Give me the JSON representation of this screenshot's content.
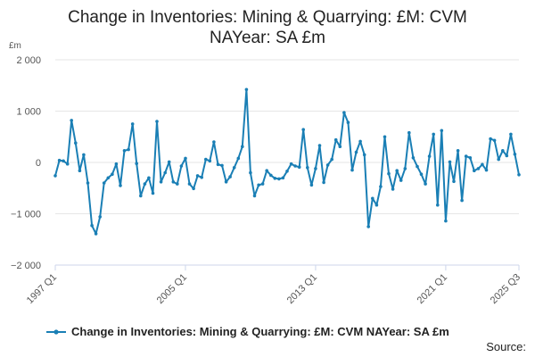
{
  "chart_data": {
    "type": "line",
    "title_lines": [
      "Change in Inventories: Mining & Quarrying: £M: CVM",
      "NAYear: SA £m"
    ],
    "ylabel": "£m",
    "ylim": [
      -2000,
      2000
    ],
    "yticks": [
      -2000,
      -1000,
      0,
      1000,
      2000
    ],
    "ytick_labels": [
      "−2 000",
      "−1 000",
      "0",
      "1 000",
      "2 000"
    ],
    "xtick_labels": [
      "1997 Q1",
      "2005 Q1",
      "2013 Q1",
      "2021 Q1",
      "2025 Q3"
    ],
    "xtick_index": [
      0,
      32,
      64,
      96,
      114
    ],
    "grid": true,
    "legend_position": "bottom",
    "color": "#1a7fb5",
    "series": [
      {
        "name": "Change in Inventories: Mining & Quarrying: £M: CVM NAYear: SA £m",
        "values": [
          -260,
          40,
          30,
          -30,
          820,
          380,
          -160,
          150,
          -400,
          -1230,
          -1390,
          -1060,
          -400,
          -300,
          -230,
          -30,
          -450,
          230,
          250,
          750,
          -20,
          -650,
          -420,
          -300,
          -600,
          800,
          -380,
          -200,
          10,
          -380,
          -420,
          -70,
          80,
          -420,
          -510,
          -260,
          -290,
          60,
          30,
          400,
          -40,
          -60,
          -380,
          -280,
          -100,
          80,
          310,
          1420,
          -200,
          -650,
          -440,
          -420,
          -160,
          -250,
          -310,
          -320,
          -300,
          -170,
          -30,
          -70,
          -90,
          640,
          -100,
          -440,
          -120,
          330,
          -390,
          -50,
          60,
          440,
          310,
          970,
          780,
          -150,
          200,
          410,
          150,
          -1250,
          -700,
          -830,
          -470,
          500,
          -220,
          -520,
          -160,
          -350,
          -120,
          580,
          90,
          -80,
          -230,
          -420,
          120,
          550,
          -830,
          620,
          -1140,
          10,
          -370,
          230,
          -740,
          120,
          90,
          -160,
          -120,
          -40,
          -150,
          460,
          430,
          60,
          230,
          130,
          550,
          160,
          -240
        ]
      }
    ],
    "source_label": "Source:"
  }
}
